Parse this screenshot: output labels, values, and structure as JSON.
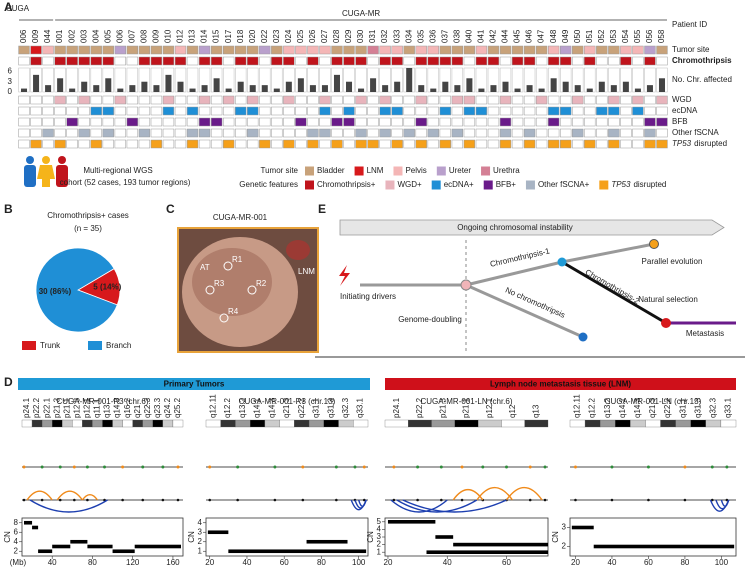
{
  "panel_letters": [
    "A",
    "B",
    "C",
    "D",
    "E"
  ],
  "panel_a": {
    "groups": [
      {
        "label": "CUGA",
        "patients": [
          "006",
          "009",
          "044"
        ]
      },
      {
        "label": "CUGA-MR",
        "patients": [
          "001",
          "002",
          "003",
          "004",
          "005",
          "006",
          "007",
          "008",
          "009",
          "010",
          "012",
          "013",
          "014",
          "015",
          "017",
          "018",
          "020",
          "022",
          "023",
          "024",
          "025",
          "026",
          "027",
          "028",
          "029",
          "030",
          "031",
          "032",
          "033",
          "034",
          "035",
          "036",
          "037",
          "038",
          "040",
          "041",
          "042",
          "044",
          "045",
          "046",
          "047",
          "048",
          "049",
          "050",
          "051",
          "052",
          "053",
          "054",
          "055",
          "056",
          "058"
        ]
      }
    ],
    "patient_id_label": "Patient ID",
    "tracks": {
      "tumor_site": {
        "label": "Tumor site"
      },
      "chromothripsis": {
        "label": "Chromothripsis",
        "color": "#c0141c",
        "positive": [
          1,
          3,
          4,
          5,
          6,
          7,
          10,
          11,
          12,
          13,
          15,
          16,
          18,
          19,
          21,
          22,
          24,
          26,
          27,
          28,
          30,
          31,
          33,
          34,
          35,
          36,
          38,
          39,
          41,
          42,
          44,
          45,
          47,
          50,
          52
        ]
      },
      "chr_affected": {
        "label": "No. Chr. affected",
        "color": "#444444",
        "ylim": [
          0,
          7
        ],
        "yticks": [
          0,
          3,
          6
        ],
        "values": [
          1,
          5,
          2,
          4,
          1,
          3,
          2,
          4,
          1,
          2,
          3,
          2,
          5,
          3,
          1,
          2,
          4,
          1,
          3,
          2,
          2,
          1,
          3,
          4,
          2,
          2,
          5,
          3,
          1,
          4,
          2,
          3,
          7,
          2,
          1,
          3,
          2,
          4,
          1,
          2,
          3,
          1,
          2,
          1,
          4,
          3,
          2,
          1,
          3,
          2,
          3,
          1,
          2,
          4
        ]
      },
      "wgd": {
        "label": "WGD",
        "color": "#e8b4bc",
        "positive": [
          3,
          5,
          8,
          12,
          15,
          17,
          19,
          22,
          25,
          28,
          30,
          33,
          36,
          37,
          40,
          43,
          46,
          49,
          51,
          53
        ]
      },
      "ecdna": {
        "label": "ecDNA",
        "color": "#1f8fd6",
        "positive": [
          6,
          7,
          12,
          14,
          18,
          19,
          25,
          27,
          30,
          31,
          35,
          37,
          38,
          44,
          45,
          48,
          49,
          51
        ]
      },
      "bfb": {
        "label": "BFB",
        "color": "#6a1b8a",
        "positive": [
          4,
          9,
          15,
          16,
          23,
          26,
          27,
          33,
          40,
          44,
          52,
          53
        ]
      },
      "other_fscna": {
        "label": "Other fSCNA",
        "color": "#a8b4c4",
        "positive": [
          2,
          5,
          7,
          10,
          14,
          15,
          19,
          24,
          25,
          28,
          30,
          32,
          34,
          36,
          40,
          42,
          46,
          49,
          52
        ]
      },
      "tp53": {
        "label": {
          "gene": "TP53",
          "rest": "disrupted"
        },
        "color": "#f5a01a",
        "positive": [
          1,
          3,
          6,
          11,
          14,
          17,
          20,
          22,
          24,
          26,
          28,
          29,
          31,
          33,
          35,
          37,
          40,
          42,
          44,
          45,
          47,
          49,
          52,
          53
        ]
      }
    },
    "cohort": [
      "Multi-regional WGS",
      "cohort (52 cases, 193 tumor regions)"
    ],
    "legend": {
      "tumor_site": {
        "title": "Tumor site",
        "items": [
          {
            "label": "Bladder",
            "color": "#c8a27a",
            "patients": [
              0,
              3,
              4,
              5,
              6,
              7,
              9,
              10,
              11,
              12,
              14,
              16,
              17,
              18,
              19,
              21,
              26,
              27,
              28,
              32,
              35,
              36,
              37,
              39,
              40,
              41,
              42,
              43,
              46,
              48,
              49,
              53
            ]
          },
          {
            "label": "LNM",
            "color": "#d7191c",
            "patients": [
              1
            ]
          },
          {
            "label": "Pelvis",
            "color": "#f4b6b6",
            "patients": [
              2,
              13,
              22,
              23,
              24,
              25,
              30,
              31,
              33,
              34,
              38,
              44,
              47,
              50,
              51
            ]
          },
          {
            "label": "Ureter",
            "color": "#b9a0cc",
            "patients": [
              8,
              15,
              20,
              45,
              52
            ]
          },
          {
            "label": "Urethra",
            "color": "#d48095",
            "patients": [
              29
            ]
          }
        ]
      },
      "genetic": {
        "title": "Genetic features",
        "items": [
          {
            "label": "Chromothripsis+",
            "color": "#c0141c"
          },
          {
            "label": "WGD+",
            "color": "#e8b4bc"
          },
          {
            "label": "ecDNA+",
            "color": "#1f8fd6"
          },
          {
            "label": "BFB+",
            "color": "#6a1b8a"
          },
          {
            "label": "Other fSCNA+",
            "color": "#a8b4c4"
          },
          {
            "label": {
              "gene": "TP53",
              "rest": "disrupted"
            },
            "color": "#f5a01a"
          }
        ]
      }
    }
  },
  "panel_b": {
    "title": "Chromothripsis+ cases",
    "subtitle": "(n = 35)",
    "slices": [
      {
        "label": "Trunk",
        "value": 5,
        "value_label": "5 (14%)",
        "color": "#d7191c"
      },
      {
        "label": "Branch",
        "value": 30,
        "value_label": "30 (86%)",
        "color": "#1f8fd6"
      }
    ]
  },
  "panel_c": {
    "title": "CUGA-MR-001",
    "labels": [
      "AT",
      "R1",
      "R2",
      "R3",
      "R4",
      "LNM"
    ]
  },
  "panel_e": {
    "banner": "Ongoing chromosomal instability",
    "labels": {
      "initiating": "Initiating drivers",
      "doubling": "Genome-doubling",
      "ct1": "Chromothripsis-1",
      "noct": "No chromothripsis",
      "ct2": "Chromothripsis-2",
      "parallel": "Parallel evolution",
      "selection": "Natural selection",
      "metastasis": "Metastasis"
    }
  },
  "panel_d": {
    "headers": [
      {
        "label": "Primary Tumors",
        "color": "#1f9ad6"
      },
      {
        "label": "Lymph node metastasis tissue (LNM)",
        "color": "#cf101a"
      }
    ],
    "plots": [
      {
        "title": "CUGA-MR-001-R3 (chr.6)",
        "bands": [
          "p24.1",
          "p22.2",
          "p22.1",
          "p21.3",
          "p21.1",
          "p12.3",
          "p12.1",
          "q11.1",
          "q13",
          "q14.3",
          "q16.2",
          "q21",
          "q22.3",
          "q23.3",
          "q24.2",
          "q25.2"
        ],
        "xlim": [
          10,
          170
        ],
        "xticks": [
          40,
          80,
          120,
          160
        ],
        "x_unit": "(Mb)",
        "ylabel": "CN",
        "ylim": [
          1,
          9
        ],
        "yticks": [
          2,
          4,
          6,
          8
        ],
        "segments": [
          [
            12,
            20,
            8
          ],
          [
            20,
            26,
            7
          ],
          [
            26,
            40,
            2
          ],
          [
            40,
            58,
            3
          ],
          [
            58,
            75,
            4
          ],
          [
            75,
            100,
            3
          ],
          [
            100,
            122,
            2
          ],
          [
            122,
            168,
            3
          ]
        ],
        "sv_points": [
          12,
          30,
          48,
          62,
          75,
          92,
          110,
          130,
          150,
          165
        ],
        "arcs_up": [
          [
            15,
            40
          ],
          [
            45,
            70
          ],
          [
            70,
            85
          ]
        ],
        "arcs_down": [
          [
            18,
            95
          ]
        ]
      },
      {
        "title": "CUGA-MR-001-R3 (chr.13)",
        "bands": [
          "q12.11",
          "q12.2",
          "q13.2",
          "q14.1",
          "q14.3",
          "q21.3",
          "q22.2",
          "q31.1",
          "q31.3",
          "q32.3",
          "q33.1"
        ],
        "xlim": [
          18,
          105
        ],
        "xticks": [
          20,
          40,
          60,
          80,
          100
        ],
        "ylabel": "CN",
        "ylim": [
          0.5,
          4.5
        ],
        "yticks": [
          1,
          2,
          3,
          4
        ],
        "segments": [
          [
            19,
            30,
            3
          ],
          [
            30,
            104,
            1
          ],
          [
            72,
            94,
            2
          ]
        ],
        "sv_points": [
          20,
          35,
          55,
          70,
          88,
          98,
          103
        ],
        "arcs_up": [],
        "arcs_down": [
          [
            96,
            104
          ],
          [
            98,
            104
          ],
          [
            100,
            104
          ]
        ]
      },
      {
        "title": "CUGA-MR-001-LN (chr.6)",
        "bands": [
          "p24.1",
          "p22.2",
          "p21.3",
          "p21.1",
          "p12.1",
          "q12",
          "q13"
        ],
        "xlim": [
          19,
          74
        ],
        "xticks": [
          20,
          40,
          60
        ],
        "ylabel": "CN",
        "ylim": [
          0.5,
          5.5
        ],
        "yticks": [
          1,
          2,
          3,
          4,
          5
        ],
        "segments": [
          [
            20,
            36,
            5
          ],
          [
            36,
            42,
            3
          ],
          [
            42,
            74,
            2
          ],
          [
            33,
            74,
            1
          ]
        ],
        "sv_points": [
          22,
          30,
          38,
          45,
          52,
          60,
          68,
          73
        ],
        "arcs_up": [
          [
            42,
            52
          ],
          [
            50,
            62
          ],
          [
            60,
            72
          ]
        ],
        "arcs_down": [
          [
            21,
            40
          ],
          [
            23,
            50
          ],
          [
            25,
            60
          ]
        ]
      },
      {
        "title": "CUGA-MR-001-LN (chr.13)",
        "bands": [
          "q12.11",
          "q12.2",
          "q13.2",
          "q14.1",
          "q14.3",
          "q21.3",
          "q22.2",
          "q31.1",
          "q31.3",
          "q32.3",
          "q33.1"
        ],
        "xlim": [
          17,
          108
        ],
        "xticks": [
          20,
          40,
          60,
          80,
          100
        ],
        "ylabel": "CN",
        "ylim": [
          1.5,
          3.5
        ],
        "yticks": [
          2,
          3
        ],
        "segments": [
          [
            18,
            30,
            3
          ],
          [
            30,
            107,
            2
          ]
        ],
        "sv_points": [
          20,
          40,
          60,
          80,
          95,
          103
        ],
        "arcs_up": [],
        "arcs_down": [
          [
            94,
            104
          ],
          [
            97,
            104
          ],
          [
            100,
            104
          ]
        ]
      }
    ]
  }
}
